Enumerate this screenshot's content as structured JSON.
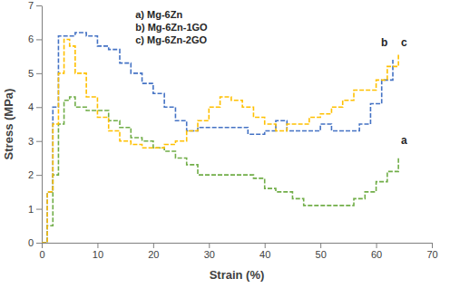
{
  "chart_data": {
    "type": "line",
    "x_label": "Strain (%)",
    "y_label": "Stress (MPa)",
    "xlim": [
      0,
      70
    ],
    "xticks": [
      0,
      10,
      20,
      30,
      40,
      50,
      60,
      70
    ],
    "ylim": [
      0,
      7
    ],
    "yticks": [
      0,
      1,
      2,
      3,
      4,
      5,
      6,
      7
    ],
    "grid": false,
    "legend": "top",
    "line_style": "dashed",
    "series": [
      {
        "name": "a) Mg-6Zn",
        "color": "#70ad47",
        "x": [
          0,
          1,
          2,
          3,
          4,
          5,
          6,
          8,
          10,
          12,
          14,
          16,
          18,
          20,
          22,
          24,
          26,
          28,
          30,
          35,
          38,
          40,
          42,
          45,
          47,
          50,
          54,
          56,
          58,
          60,
          62,
          64
        ],
        "values": [
          0,
          0.5,
          2,
          3.5,
          4.2,
          4.3,
          4.0,
          3.9,
          3.9,
          3.6,
          3.4,
          3.1,
          3.0,
          2.8,
          2.7,
          2.5,
          2.3,
          2.0,
          2.0,
          2.0,
          1.9,
          1.6,
          1.5,
          1.3,
          1.1,
          1.1,
          1.1,
          1.3,
          1.5,
          1.8,
          2.1,
          2.5
        ]
      },
      {
        "name": "b) Mg-6Zn-1GO",
        "color": "#4472c4",
        "x": [
          0,
          1,
          2,
          3,
          5,
          6,
          8,
          10,
          12,
          14,
          16,
          18,
          20,
          22,
          24,
          26,
          28,
          30,
          35,
          37,
          40,
          42,
          44,
          46,
          50,
          52,
          55,
          57,
          59,
          61,
          63
        ],
        "values": [
          0,
          1.5,
          4,
          6.1,
          6.1,
          6.2,
          6.1,
          5.8,
          5.7,
          5.3,
          5.0,
          4.7,
          4.4,
          4.0,
          3.6,
          3.3,
          3.4,
          3.4,
          3.4,
          3.2,
          3.3,
          3.6,
          3.3,
          3.3,
          3.5,
          3.3,
          3.3,
          3.5,
          4.1,
          4.8,
          5.4
        ]
      },
      {
        "name": "c) Mg-6Zn-2GO",
        "color": "#ffc000",
        "x": [
          0,
          1,
          2,
          3,
          4,
          5,
          6,
          8,
          10,
          12,
          14,
          16,
          18,
          20,
          22,
          24,
          26,
          28,
          30,
          32,
          34,
          36,
          38,
          40,
          42,
          44,
          46,
          48,
          50,
          52,
          54,
          56,
          58,
          60,
          62,
          64
        ],
        "values": [
          0,
          1.5,
          3.5,
          5,
          6.0,
          5.8,
          5.0,
          4.3,
          3.7,
          3.3,
          3.0,
          2.9,
          2.8,
          2.8,
          2.9,
          3.0,
          3.3,
          3.6,
          4.0,
          4.3,
          4.2,
          4.0,
          3.7,
          3.5,
          3.3,
          3.5,
          3.5,
          3.7,
          3.8,
          4.0,
          4.2,
          4.5,
          4.5,
          4.8,
          5.2,
          5.6
        ]
      }
    ],
    "annotations": [
      {
        "text": "a",
        "x": 65,
        "y": 2.9
      },
      {
        "text": "b",
        "x": 61.5,
        "y": 5.8
      },
      {
        "text": "c",
        "x": 65,
        "y": 5.8
      }
    ]
  }
}
